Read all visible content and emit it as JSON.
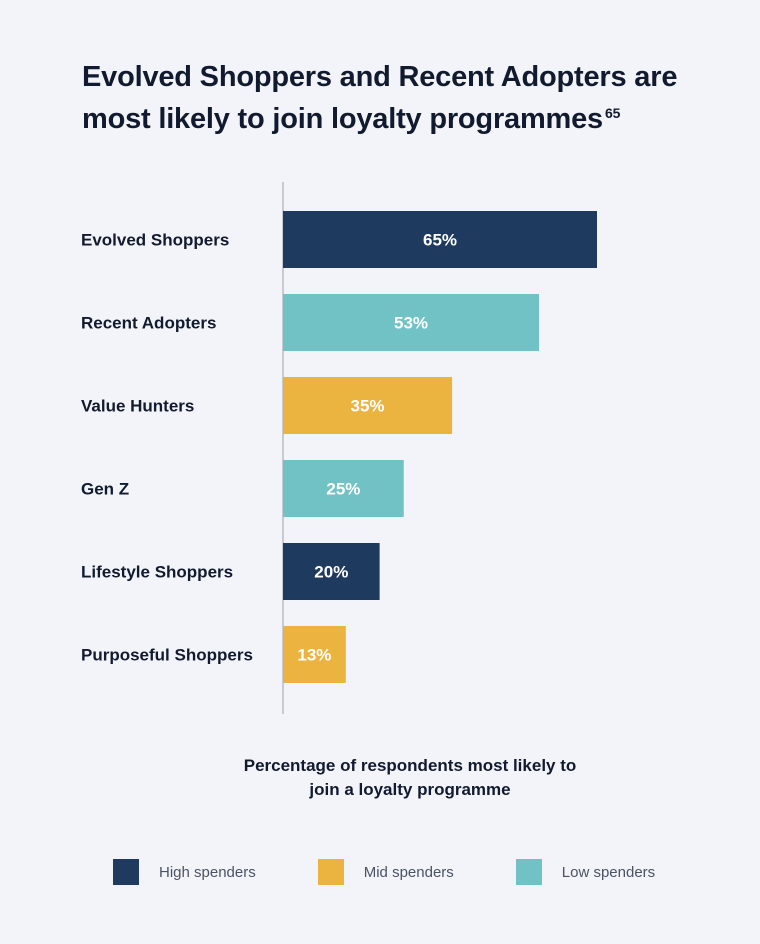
{
  "title": "Evolved Shoppers and Recent Adopters are most likely to join loyalty programmes",
  "title_footnote": "65",
  "chart_data": {
    "type": "bar",
    "orientation": "horizontal",
    "xlabel": "Percentage of respondents most likely to join a loyalty programme",
    "xlim": [
      0,
      100
    ],
    "grid": false,
    "legend_position": "bottom",
    "categories": [
      "Evolved Shoppers",
      "Recent Adopters",
      "Value Hunters",
      "Gen Z",
      "Lifestyle Shoppers",
      "Purposeful Shoppers"
    ],
    "values": [
      65,
      53,
      35,
      25,
      20,
      13
    ],
    "data_labels": [
      "65%",
      "53%",
      "35%",
      "25%",
      "20%",
      "13%"
    ],
    "bar_groups": [
      "High spenders",
      "Low spenders",
      "Mid spenders",
      "Low spenders",
      "High spenders",
      "Mid spenders"
    ],
    "legend": [
      {
        "name": "High spenders",
        "color": "#1f3a5f"
      },
      {
        "name": "Mid spenders",
        "color": "#ebb440"
      },
      {
        "name": "Low spenders",
        "color": "#71c2c5"
      }
    ]
  }
}
